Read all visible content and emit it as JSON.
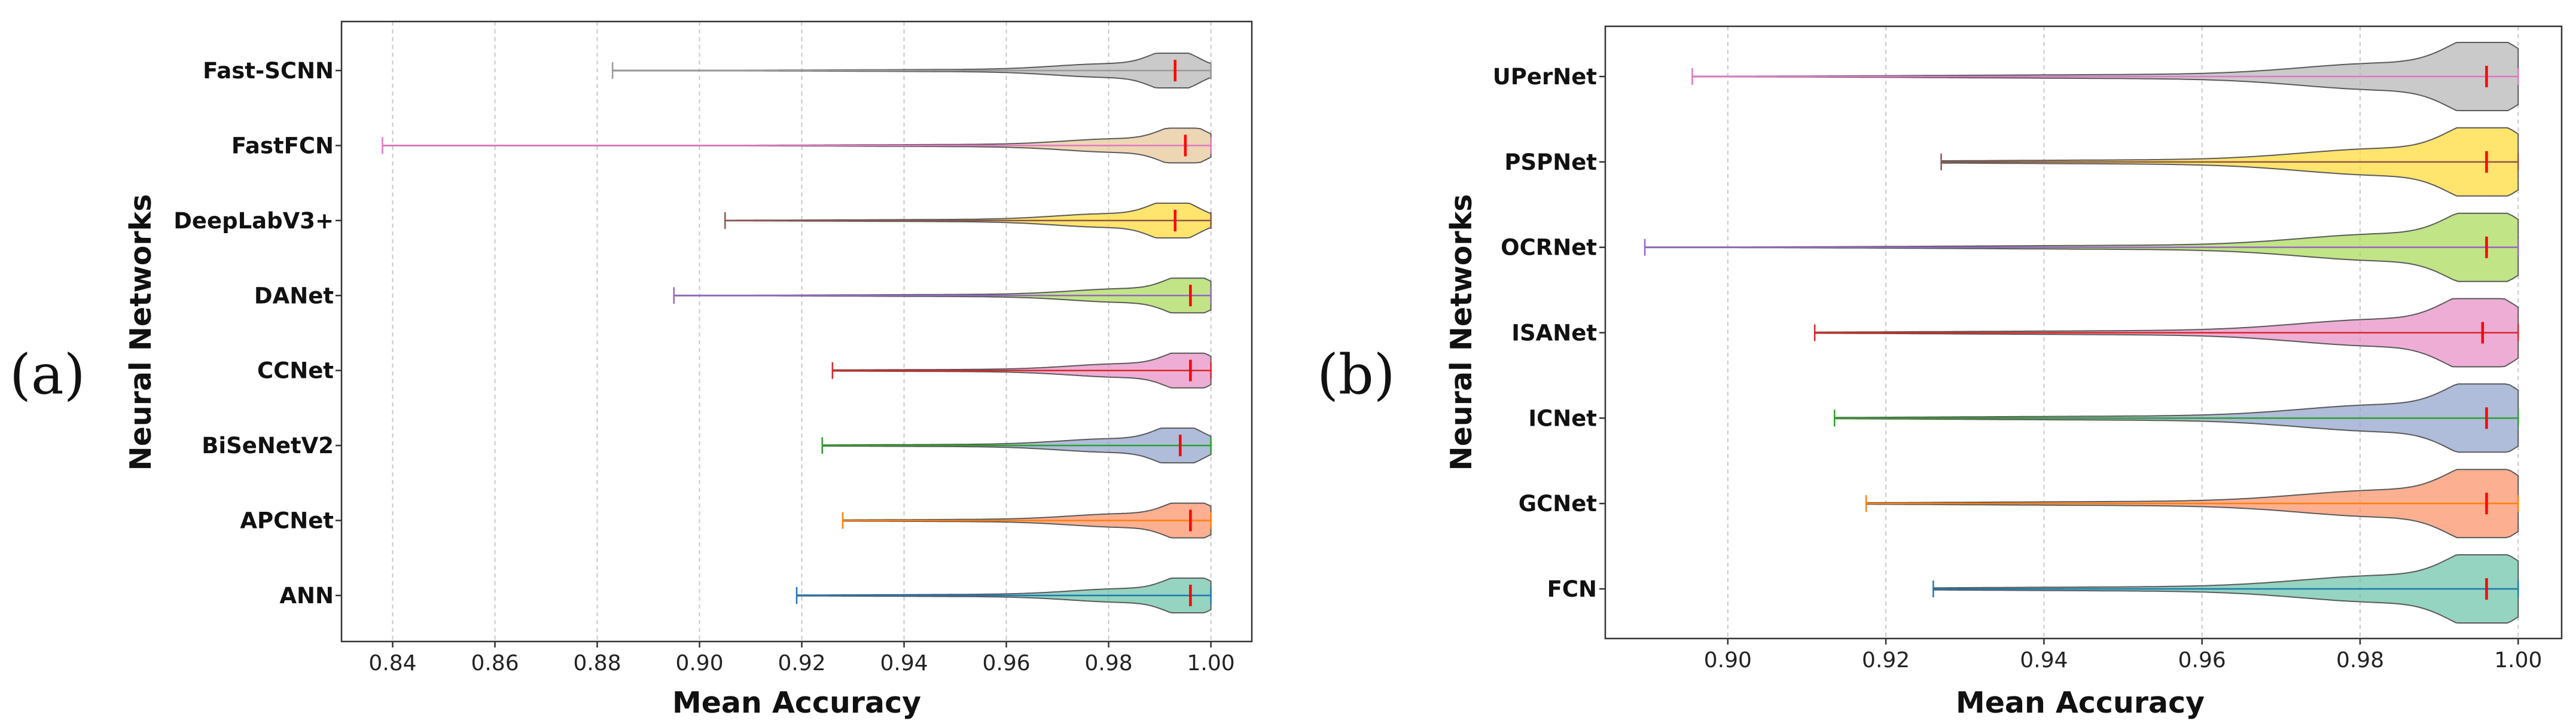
{
  "chart_data": [
    {
      "type": "violin",
      "panel_label": "(a)",
      "xlabel": "Mean Accuracy",
      "ylabel": "Neural Networks",
      "xlim": [
        0.83,
        1.008
      ],
      "xticks": [
        0.84,
        0.86,
        0.88,
        0.9,
        0.92,
        0.94,
        0.96,
        0.98,
        1.0
      ],
      "xtick_labels": [
        "0.84",
        "0.86",
        "0.88",
        "0.90",
        "0.92",
        "0.94",
        "0.96",
        "0.98",
        "1.00"
      ],
      "grid": "vertical dashed",
      "series": [
        {
          "name": "Fast-SCNN",
          "min": 0.883,
          "median": 0.993,
          "max": 1.0,
          "color": "#b3b3b3",
          "whisker_color": "#999999"
        },
        {
          "name": "FastFCN",
          "min": 0.838,
          "median": 0.995,
          "max": 1.0,
          "color": "#e5c494",
          "whisker_color": "#e377c2"
        },
        {
          "name": "DeepLabV3+",
          "min": 0.905,
          "median": 0.993,
          "max": 1.0,
          "color": "#ffd92f",
          "whisker_color": "#8c564b"
        },
        {
          "name": "DANet",
          "min": 0.895,
          "median": 0.996,
          "max": 1.0,
          "color": "#a6d854",
          "whisker_color": "#9467bd"
        },
        {
          "name": "CCNet",
          "min": 0.926,
          "median": 0.996,
          "max": 1.0,
          "color": "#e78ac3",
          "whisker_color": "#d62728"
        },
        {
          "name": "BiSeNetV2",
          "min": 0.924,
          "median": 0.994,
          "max": 1.0,
          "color": "#8da0cb",
          "whisker_color": "#2ca02c"
        },
        {
          "name": "APCNet",
          "min": 0.928,
          "median": 0.996,
          "max": 1.0,
          "color": "#fc8d62",
          "whisker_color": "#ff7f0e"
        },
        {
          "name": "ANN",
          "min": 0.919,
          "median": 0.996,
          "max": 1.0,
          "color": "#66c2a5",
          "whisker_color": "#1f77b4"
        }
      ]
    },
    {
      "type": "violin",
      "panel_label": "(b)",
      "xlabel": "Mean Accuracy",
      "ylabel": "Neural Networks",
      "xlim": [
        0.8845,
        1.0055
      ],
      "xticks": [
        0.9,
        0.92,
        0.94,
        0.96,
        0.98,
        1.0
      ],
      "xtick_labels": [
        "0.90",
        "0.92",
        "0.94",
        "0.96",
        "0.98",
        "1.00"
      ],
      "grid": "vertical dashed",
      "series": [
        {
          "name": "UPerNet",
          "min": 0.8955,
          "median": 0.996,
          "max": 1.0,
          "color": "#b3b3b3",
          "whisker_color": "#e377c2"
        },
        {
          "name": "PSPNet",
          "min": 0.927,
          "median": 0.996,
          "max": 1.0,
          "color": "#ffd92f",
          "whisker_color": "#8c564b"
        },
        {
          "name": "OCRNet",
          "min": 0.8895,
          "median": 0.996,
          "max": 1.0,
          "color": "#a6d854",
          "whisker_color": "#9467bd"
        },
        {
          "name": "ISANet",
          "min": 0.911,
          "median": 0.9955,
          "max": 1.0,
          "color": "#e78ac3",
          "whisker_color": "#d62728"
        },
        {
          "name": "ICNet",
          "min": 0.9135,
          "median": 0.996,
          "max": 1.0,
          "color": "#8da0cb",
          "whisker_color": "#2ca02c"
        },
        {
          "name": "GCNet",
          "min": 0.9175,
          "median": 0.996,
          "max": 1.0,
          "color": "#fc8d62",
          "whisker_color": "#ff7f0e"
        },
        {
          "name": "FCN",
          "min": 0.926,
          "median": 0.996,
          "max": 1.0,
          "color": "#66c2a5",
          "whisker_color": "#1f77b4"
        }
      ]
    }
  ],
  "style": {
    "median_color": "#ff0000",
    "violin_edge": "#5a5a5a",
    "grid_color": "#c8c8c8",
    "axis_color": "#333333"
  }
}
